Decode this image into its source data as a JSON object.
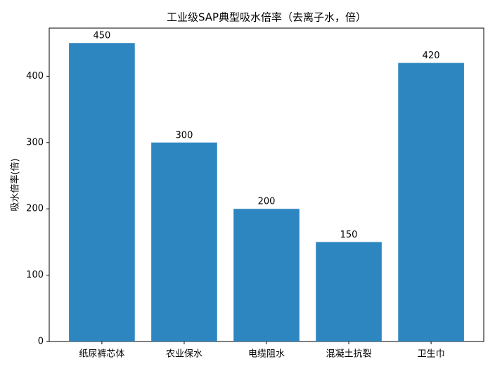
{
  "chart_data": {
    "type": "bar",
    "title": "工业级SAP典型吸水倍率（去离子水，倍）",
    "y_label": "吸水倍率(倍)",
    "categories": [
      "纸尿裤芯体",
      "农业保水",
      "电缆阻水",
      "混凝土抗裂",
      "卫生巾"
    ],
    "values": [
      450,
      300,
      200,
      150,
      420
    ],
    "color": "#2e86c1",
    "ylim": [
      0,
      472.5
    ],
    "yticks": [
      0,
      100,
      200,
      300,
      400
    ],
    "grid": false
  }
}
